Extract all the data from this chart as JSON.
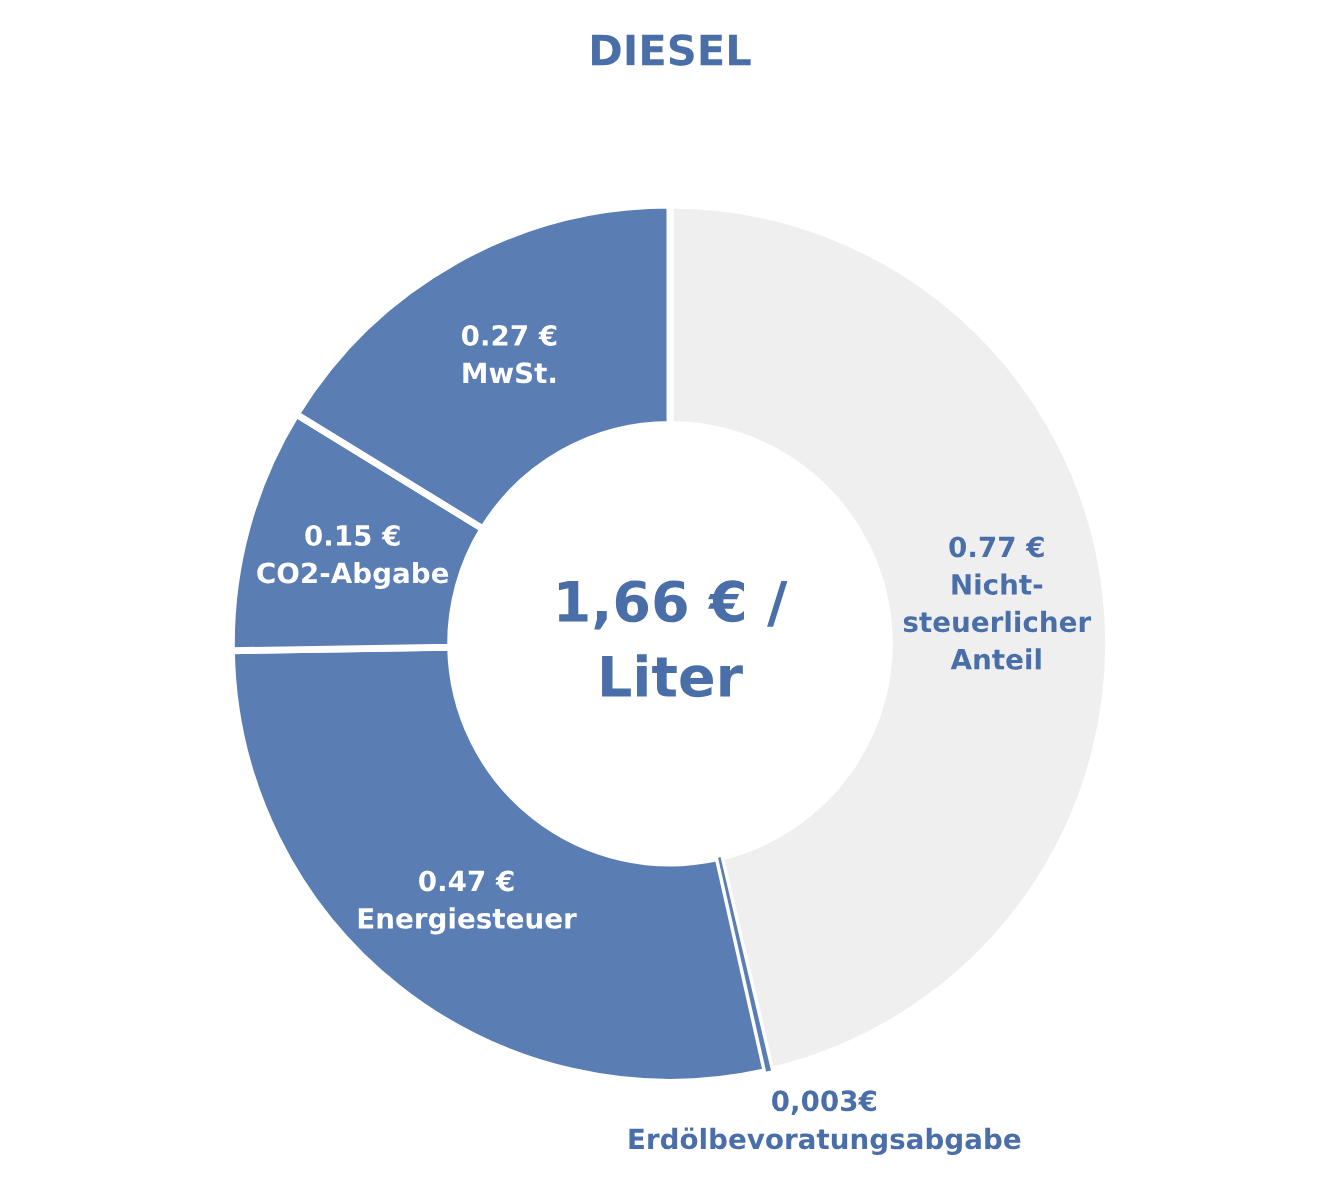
{
  "chart_data": {
    "type": "donut",
    "title": "DIESEL",
    "categories": [
      "Nicht-\nsteuerlicher\nAnteil",
      "Erdölbevoratungsabgabe",
      "Energiesteuer",
      "CO2-Abgabe",
      "MwSt."
    ],
    "values": [
      0.77,
      0.003,
      0.47,
      0.15,
      0.27
    ],
    "value_labels": [
      "0.77 €",
      "0,003€",
      "0.47 €",
      "0.15 €",
      "0.27 €"
    ],
    "colors": [
      "#efefef",
      "#5a7db3",
      "#5a7db3",
      "#5a7db3",
      "#5a7db3"
    ],
    "annotations": [
      "1,66 € /\nLiter"
    ],
    "legend": false
  }
}
